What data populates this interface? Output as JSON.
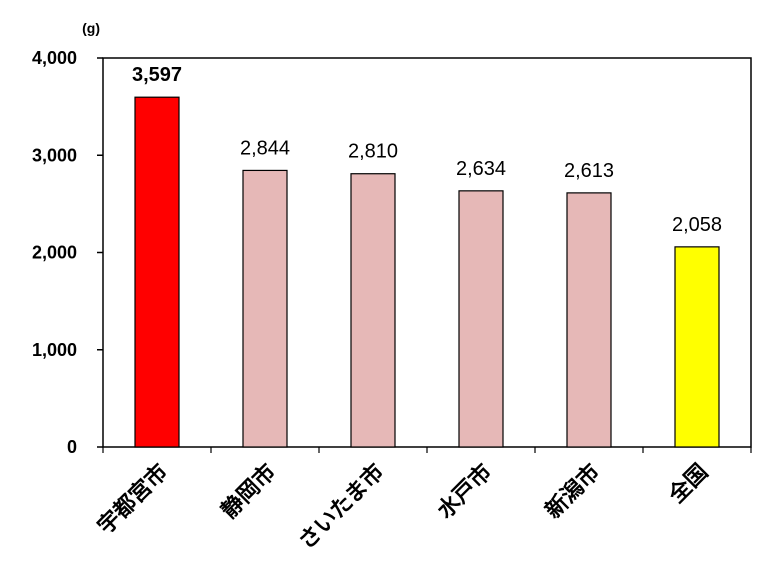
{
  "chart_data": {
    "type": "bar",
    "title": "",
    "xlabel": "",
    "ylabel": "",
    "unit": "(g)",
    "categories": [
      "宇都宮市",
      "静岡市",
      "さいたま市",
      "水戸市",
      "新潟市",
      "全国"
    ],
    "values": [
      3597,
      2844,
      2810,
      2634,
      2613,
      2058
    ],
    "value_labels": [
      "3,597",
      "2,844",
      "2,810",
      "2,634",
      "2,613",
      "2,058"
    ],
    "bar_colors": [
      "#ff0000",
      "#e6b8b7",
      "#e6b8b7",
      "#e6b8b7",
      "#e6b8b7",
      "#ffff00"
    ],
    "highlight_index": 0,
    "ylim": [
      0,
      4000
    ],
    "yticks": [
      0,
      1000,
      2000,
      3000,
      4000
    ],
    "ytick_labels": [
      "0",
      "1,000",
      "2,000",
      "3,000",
      "4,000"
    ],
    "grid": false,
    "legend": "none"
  }
}
